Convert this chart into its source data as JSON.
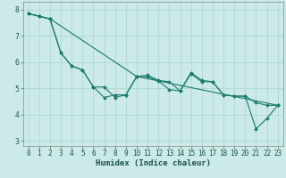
{
  "xlabel": "Humidex (Indice chaleur)",
  "background_color": "#cceae7",
  "grid_color": "#aad4d0",
  "line_color": "#1a7a6e",
  "xlim": [
    -0.5,
    23.5
  ],
  "ylim": [
    2.8,
    8.3
  ],
  "yticks": [
    3,
    4,
    5,
    6,
    7,
    8
  ],
  "xticks": [
    0,
    1,
    2,
    3,
    4,
    5,
    6,
    7,
    8,
    9,
    10,
    11,
    12,
    13,
    14,
    15,
    16,
    17,
    18,
    19,
    20,
    21,
    22,
    23
  ],
  "series1_x": [
    0,
    1,
    2,
    3,
    4,
    5,
    6,
    7,
    8,
    9,
    10,
    11,
    12,
    13,
    14,
    15,
    16,
    17,
    18,
    19,
    20,
    21,
    22,
    23
  ],
  "series1_y": [
    7.85,
    7.75,
    7.65,
    6.35,
    5.85,
    5.7,
    5.05,
    5.05,
    4.65,
    4.75,
    5.45,
    5.5,
    5.3,
    5.25,
    4.9,
    5.6,
    5.3,
    5.25,
    4.75,
    4.7,
    4.7,
    4.45,
    4.35,
    4.35
  ],
  "series2_x": [
    0,
    1,
    2,
    3,
    4,
    5,
    6,
    7,
    8,
    9,
    10,
    11,
    12,
    13,
    14,
    15,
    16,
    17,
    18,
    19,
    20,
    21,
    22,
    23
  ],
  "series2_y": [
    7.85,
    7.75,
    7.65,
    6.35,
    5.85,
    5.7,
    5.05,
    4.65,
    4.75,
    4.75,
    5.45,
    5.45,
    5.28,
    4.95,
    4.9,
    5.55,
    5.25,
    5.25,
    4.75,
    4.7,
    4.7,
    3.45,
    3.85,
    4.35
  ],
  "series3_x": [
    0,
    2,
    10,
    23
  ],
  "series3_y": [
    7.85,
    7.65,
    5.45,
    4.35
  ],
  "marker": "D",
  "marker_size": 2.0,
  "line_width": 0.8,
  "font_size_ticks": 5.5,
  "font_size_label": 6.5
}
